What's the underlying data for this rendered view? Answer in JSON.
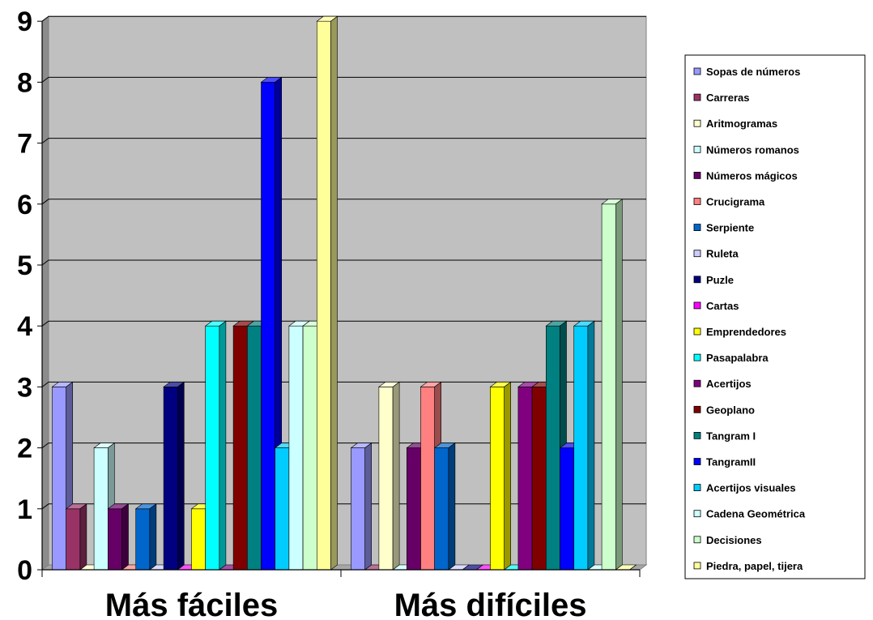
{
  "chart_data": {
    "type": "bar",
    "categories": [
      "Más fáciles",
      "Más difíciles"
    ],
    "ylim": [
      0,
      9
    ],
    "yticks": [
      0,
      1,
      2,
      3,
      4,
      5,
      6,
      7,
      8,
      9
    ],
    "grid": true,
    "legend_position": "right",
    "plot_background": "#c0c0c0",
    "series": [
      {
        "name": "Sopas de números",
        "color": "#9999ff",
        "values": [
          3,
          2
        ]
      },
      {
        "name": "Carreras",
        "color": "#993366",
        "values": [
          1,
          0
        ]
      },
      {
        "name": "Aritmogramas",
        "color": "#ffffcc",
        "values": [
          0,
          3
        ]
      },
      {
        "name": "Números romanos",
        "color": "#ccffff",
        "values": [
          2,
          0
        ]
      },
      {
        "name": "Números mágicos",
        "color": "#660066",
        "values": [
          1,
          2
        ]
      },
      {
        "name": "Crucigrama",
        "color": "#ff8080",
        "values": [
          0,
          3
        ]
      },
      {
        "name": "Serpiente",
        "color": "#0066cc",
        "values": [
          1,
          2
        ]
      },
      {
        "name": "Ruleta",
        "color": "#ccccff",
        "values": [
          0,
          0
        ]
      },
      {
        "name": "Puzle",
        "color": "#000080",
        "values": [
          3,
          0
        ]
      },
      {
        "name": "Cartas",
        "color": "#ff00ff",
        "values": [
          0,
          0
        ]
      },
      {
        "name": "Emprendedores",
        "color": "#ffff00",
        "values": [
          1,
          3
        ]
      },
      {
        "name": "Pasapalabra",
        "color": "#00ffff",
        "values": [
          4,
          0
        ]
      },
      {
        "name": "Acertijos",
        "color": "#800080",
        "values": [
          0,
          3
        ]
      },
      {
        "name": "Geoplano",
        "color": "#800000",
        "values": [
          4,
          3
        ]
      },
      {
        "name": "Tangram I",
        "color": "#008080",
        "values": [
          4,
          4
        ]
      },
      {
        "name": "TangramII",
        "color": "#0000ff",
        "values": [
          8,
          2
        ]
      },
      {
        "name": "Acertijos visuales",
        "color": "#00ccff",
        "values": [
          2,
          4
        ]
      },
      {
        "name": "Cadena Geométrica",
        "color": "#ccffff",
        "values": [
          4,
          0
        ]
      },
      {
        "name": "Decisiones",
        "color": "#ccffcc",
        "values": [
          4,
          6
        ]
      },
      {
        "name": "Piedra, papel, tijera",
        "color": "#ffff99",
        "values": [
          9,
          0
        ]
      }
    ]
  }
}
